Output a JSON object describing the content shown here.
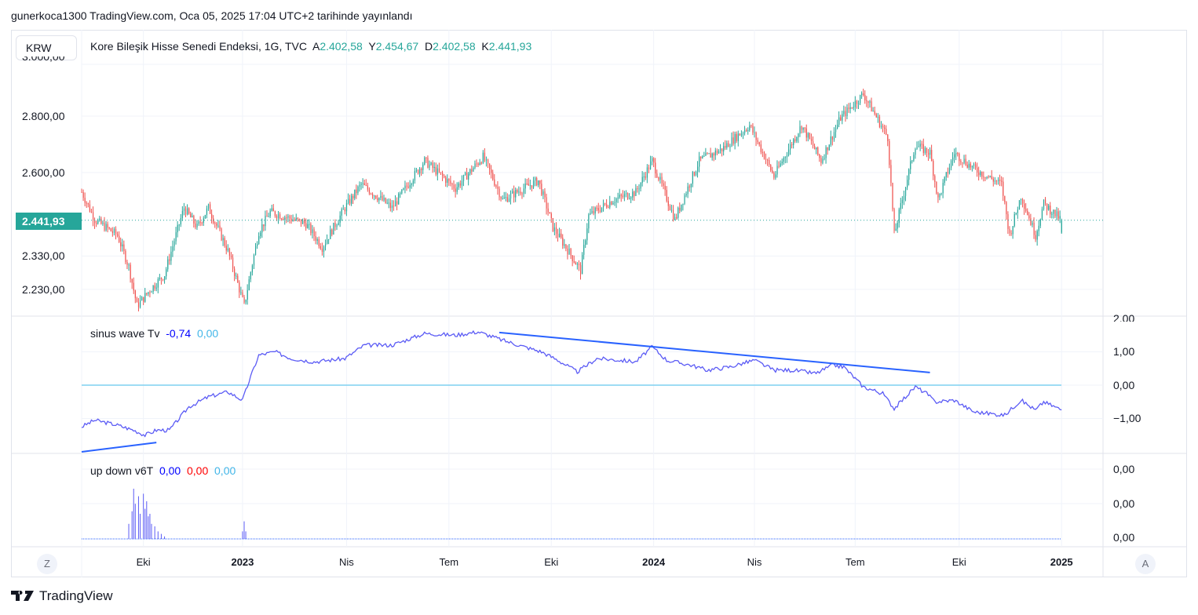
{
  "header": {
    "published": "gunerkoca1300 TradingView.com, Oca 05, 2025 17:04 UTC+2 tarihinde yayınlandı"
  },
  "symbol_button": "KRW",
  "legend": {
    "title": "Kore Bileşik Hisse Senedi Endeksi, 1G, TVC",
    "o_label": "A",
    "o": "2.402,58",
    "h_label": "Y",
    "h": "2.454,67",
    "l_label": "D",
    "l": "2.402,58",
    "c_label": "K",
    "c": "2.441,93"
  },
  "colors": {
    "up": "#26a69a",
    "down": "#ef5350",
    "wave": "#5b5bf5",
    "trend": "#2962ff",
    "zero": "#7fd0f0"
  },
  "price_axis": {
    "top_cut": "3.000,00",
    "labels": [
      "2.800,00",
      "2.600,00",
      "2.330,00",
      "2.230,00"
    ],
    "last": "2.441,93"
  },
  "sinus": {
    "name": "sinus wave Tv",
    "v1": "-0,74",
    "v2": "0,00",
    "axis": [
      "2,00",
      "1,00",
      "0,00",
      "−1,00"
    ]
  },
  "updown": {
    "name": "up down v6T",
    "v1": "0,00",
    "v2": "0,00",
    "v3": "0,00",
    "axis": [
      "0,00",
      "0,00",
      "0,00"
    ]
  },
  "time_axis": {
    "z": "Z",
    "a": "A"
  },
  "brand": "TradingView",
  "chart_data": {
    "type": "candlestick",
    "price_levels": [
      2800,
      2600,
      2330,
      2230
    ],
    "price_waypoints": [
      [
        0,
        2534
      ],
      [
        8,
        2444
      ],
      [
        22,
        2394
      ],
      [
        29,
        2297
      ],
      [
        34,
        2182
      ],
      [
        42,
        2228
      ],
      [
        51,
        2274
      ],
      [
        63,
        2482
      ],
      [
        71,
        2419
      ],
      [
        78,
        2482
      ],
      [
        90,
        2345
      ],
      [
        100,
        2182
      ],
      [
        109,
        2406
      ],
      [
        116,
        2469
      ],
      [
        138,
        2431
      ],
      [
        148,
        2357
      ],
      [
        162,
        2482
      ],
      [
        172,
        2560
      ],
      [
        191,
        2482
      ],
      [
        211,
        2640
      ],
      [
        230,
        2547
      ],
      [
        247,
        2654
      ],
      [
        259,
        2508
      ],
      [
        281,
        2573
      ],
      [
        290,
        2419
      ],
      [
        307,
        2286
      ],
      [
        312,
        2457
      ],
      [
        327,
        2508
      ],
      [
        341,
        2534
      ],
      [
        351,
        2640
      ],
      [
        365,
        2444
      ],
      [
        380,
        2640
      ],
      [
        394,
        2681
      ],
      [
        411,
        2766
      ],
      [
        426,
        2586
      ],
      [
        443,
        2766
      ],
      [
        455,
        2640
      ],
      [
        467,
        2794
      ],
      [
        481,
        2882
      ],
      [
        496,
        2723
      ],
      [
        500,
        2394
      ],
      [
        513,
        2695
      ],
      [
        522,
        2668
      ],
      [
        527,
        2508
      ],
      [
        537,
        2668
      ],
      [
        549,
        2613
      ],
      [
        566,
        2560
      ],
      [
        571,
        2394
      ],
      [
        578,
        2521
      ],
      [
        587,
        2394
      ],
      [
        592,
        2495
      ],
      [
        603,
        2441.93
      ]
    ],
    "sinus_waypoints": [
      [
        0,
        -1.25
      ],
      [
        8,
        -1.05
      ],
      [
        13,
        -1.1
      ],
      [
        22,
        -1.2
      ],
      [
        32,
        -1.35
      ],
      [
        39,
        -1.5
      ],
      [
        46,
        -1.35
      ],
      [
        54,
        -1.35
      ],
      [
        66,
        -0.65
      ],
      [
        78,
        -0.35
      ],
      [
        90,
        -0.2
      ],
      [
        99,
        -0.45
      ],
      [
        104,
        0.25
      ],
      [
        109,
        0.9
      ],
      [
        119,
        1.0
      ],
      [
        129,
        0.8
      ],
      [
        143,
        0.7
      ],
      [
        162,
        0.8
      ],
      [
        174,
        1.2
      ],
      [
        191,
        1.2
      ],
      [
        211,
        1.55
      ],
      [
        230,
        1.5
      ],
      [
        244,
        1.6
      ],
      [
        259,
        1.35
      ],
      [
        269,
        1.2
      ],
      [
        283,
        1.0
      ],
      [
        293,
        0.75
      ],
      [
        305,
        0.4
      ],
      [
        317,
        0.8
      ],
      [
        331,
        0.75
      ],
      [
        341,
        0.7
      ],
      [
        351,
        1.15
      ],
      [
        360,
        0.75
      ],
      [
        375,
        0.6
      ],
      [
        385,
        0.45
      ],
      [
        399,
        0.55
      ],
      [
        414,
        0.75
      ],
      [
        426,
        0.45
      ],
      [
        438,
        0.45
      ],
      [
        452,
        0.35
      ],
      [
        462,
        0.6
      ],
      [
        469,
        0.55
      ],
      [
        481,
        -0.05
      ],
      [
        493,
        -0.25
      ],
      [
        500,
        -0.7
      ],
      [
        513,
        -0.05
      ],
      [
        520,
        -0.25
      ],
      [
        525,
        -0.5
      ],
      [
        537,
        -0.45
      ],
      [
        549,
        -0.8
      ],
      [
        568,
        -0.9
      ],
      [
        578,
        -0.45
      ],
      [
        587,
        -0.75
      ],
      [
        592,
        -0.5
      ],
      [
        603,
        -0.74
      ]
    ],
    "sinus_trendlines": [
      [
        [
          257,
          1.58
        ],
        [
          522,
          0.38
        ]
      ],
      [
        [
          0,
          -2.0
        ],
        [
          46,
          -1.72
        ]
      ]
    ],
    "updown_spikes": [
      [
        29,
        0.3
      ],
      [
        31,
        0.55
      ],
      [
        32,
        1.0
      ],
      [
        33,
        0.7
      ],
      [
        35,
        0.85
      ],
      [
        36,
        0.5
      ],
      [
        38,
        0.9
      ],
      [
        39,
        0.6
      ],
      [
        40,
        0.75
      ],
      [
        41,
        0.45
      ],
      [
        42,
        0.5
      ],
      [
        43,
        0.3
      ],
      [
        45,
        0.25
      ],
      [
        47,
        0.15
      ],
      [
        49,
        0.1
      ],
      [
        51,
        0.05
      ],
      [
        99,
        0.15
      ],
      [
        100,
        0.35
      ],
      [
        101,
        0.15
      ]
    ],
    "time_ticks": [
      [
        "Eki",
        38,
        false
      ],
      [
        "2023",
        99,
        true
      ],
      [
        "Nis",
        163,
        false
      ],
      [
        "Tem",
        226,
        false
      ],
      [
        "Eki",
        289,
        false
      ],
      [
        "2024",
        352,
        true
      ],
      [
        "Nis",
        414,
        false
      ],
      [
        "Tem",
        476,
        false
      ],
      [
        "Eki",
        540,
        false
      ],
      [
        "2025",
        603,
        true
      ]
    ]
  }
}
